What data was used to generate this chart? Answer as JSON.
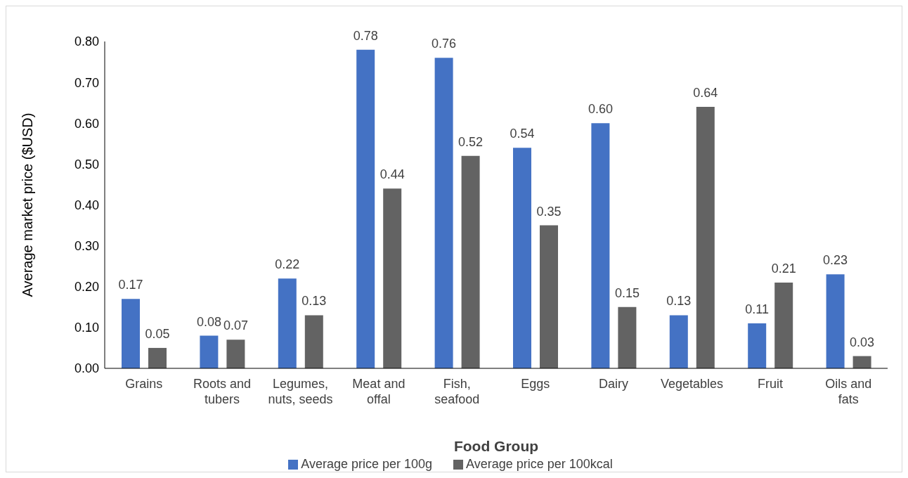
{
  "chart_data": {
    "type": "bar",
    "xlabel": "Food Group",
    "ylabel": "Average market price ($USD)",
    "categories": [
      "Grains",
      "Roots and tubers",
      "Legumes, nuts, seeds",
      "Meat and offal",
      "Fish, seafood",
      "Eggs",
      "Dairy",
      "Vegetables",
      "Fruit",
      "Oils and fats"
    ],
    "series": [
      {
        "name": "Average price per 100g",
        "color": "#4472c4",
        "values": [
          0.17,
          0.08,
          0.22,
          0.78,
          0.76,
          0.54,
          0.6,
          0.13,
          0.11,
          0.23
        ],
        "value_labels": [
          "0.17",
          "0.08",
          "0.22",
          "0.78",
          "0.76",
          "0.54",
          "0.60",
          "0.13",
          "0.11",
          "0.23"
        ]
      },
      {
        "name": "Average price per 100kcal",
        "color": "#636363",
        "values": [
          0.05,
          0.07,
          0.13,
          0.44,
          0.52,
          0.35,
          0.15,
          0.64,
          0.21,
          0.03
        ],
        "value_labels": [
          "0.05",
          "0.07",
          "0.13",
          "0.44",
          "0.52",
          "0.35",
          "0.15",
          "0.64",
          "0.21",
          "0.03"
        ]
      }
    ],
    "ylim": [
      0,
      0.8
    ],
    "yticks": [
      {
        "value": 0,
        "label": "0.00"
      },
      {
        "value": 0.1,
        "label": "0.10"
      },
      {
        "value": 0.2,
        "label": "0.20"
      },
      {
        "value": 0.3,
        "label": "0.30"
      },
      {
        "value": 0.4,
        "label": "0.40"
      },
      {
        "value": 0.5,
        "label": "0.50"
      },
      {
        "value": 0.6,
        "label": "0.60"
      },
      {
        "value": 0.7,
        "label": "0.70"
      },
      {
        "value": 0.8,
        "label": "0.80"
      }
    ],
    "grid": false,
    "legend": "bottom"
  }
}
